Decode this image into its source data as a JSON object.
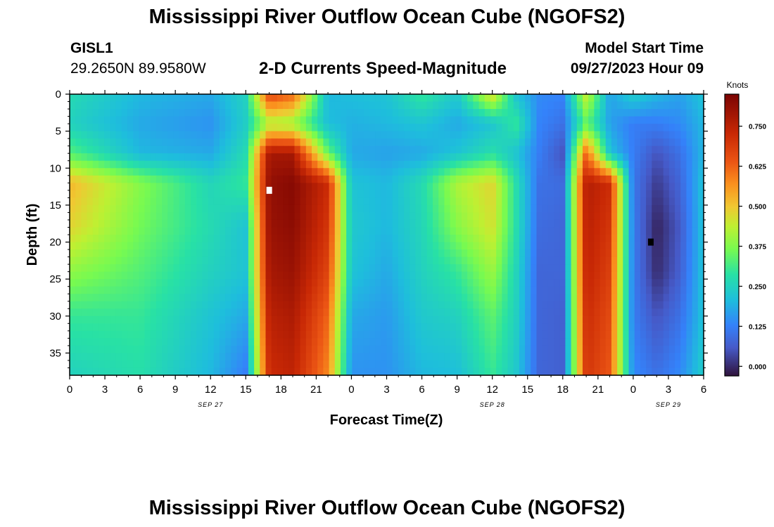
{
  "header": {
    "title": "Mississippi River Outflow Ocean Cube (NGOFS2)",
    "station_id": "GISL1",
    "station_coords": "29.2650N  89.9580W",
    "subtitle": "2-D Currents Speed-Magnitude",
    "model_start_label": "Model Start Time",
    "model_start_value": "09/27/2023 Hour 09"
  },
  "footer": {
    "repeated_title": "Mississippi River Outflow Ocean Cube (NGOFS2)"
  },
  "chart_data": {
    "type": "heatmap",
    "xlabel": "Forecast Time(Z)",
    "ylabel": "Depth (ft)",
    "x_unit": "hours from SEP 27 00Z",
    "xlim": [
      0,
      54
    ],
    "ylim": [
      0,
      38
    ],
    "y_inverted": true,
    "x_tick_values": [
      0,
      3,
      6,
      9,
      12,
      15,
      18,
      21,
      24,
      27,
      30,
      33,
      36,
      39,
      42,
      45,
      48,
      51,
      54
    ],
    "x_tick_labels": [
      "0",
      "3",
      "6",
      "9",
      "12",
      "15",
      "18",
      "21",
      "0",
      "3",
      "6",
      "9",
      "12",
      "15",
      "18",
      "21",
      "0",
      "3",
      "6"
    ],
    "date_labels": [
      {
        "text": "SEP 27",
        "x": 12
      },
      {
        "text": "SEP 28",
        "x": 36
      },
      {
        "text": "SEP 29",
        "x": 51
      }
    ],
    "y_ticks": [
      0,
      5,
      10,
      15,
      20,
      25,
      30,
      35
    ],
    "colorbar": {
      "label": "Knots",
      "min": -0.03,
      "max": 0.85,
      "ticks": [
        0.0,
        0.125,
        0.25,
        0.375,
        0.5,
        0.625,
        0.75
      ],
      "tick_labels": [
        "0.000",
        "0.125",
        "0.250",
        "0.375",
        "0.500",
        "0.625",
        "0.750"
      ]
    },
    "max_marker": {
      "x": 17,
      "y": 13,
      "color": "#ffffff"
    },
    "min_marker": {
      "x": 49.5,
      "y": 20,
      "color": "#000000"
    },
    "grid": {
      "x_hours": [
        0,
        6,
        12,
        15,
        17,
        19,
        22,
        24,
        27,
        30,
        33,
        36,
        38,
        40,
        42,
        44,
        46,
        48,
        50,
        52,
        54
      ],
      "depths": [
        0,
        4,
        8,
        12,
        18,
        24,
        30,
        38
      ],
      "speed": [
        [
          0.27,
          0.2,
          0.18,
          0.25,
          0.67,
          0.62,
          0.2,
          0.21,
          0.22,
          0.3,
          0.23,
          0.48,
          0.22,
          0.14,
          0.13,
          0.45,
          0.17,
          0.24,
          0.2,
          0.17,
          0.22
        ],
        [
          0.25,
          0.18,
          0.15,
          0.24,
          0.42,
          0.4,
          0.21,
          0.19,
          0.2,
          0.22,
          0.18,
          0.22,
          0.3,
          0.13,
          0.1,
          0.34,
          0.17,
          0.12,
          0.12,
          0.14,
          0.2
        ],
        [
          0.33,
          0.2,
          0.18,
          0.27,
          0.78,
          0.78,
          0.35,
          0.18,
          0.17,
          0.18,
          0.22,
          0.28,
          0.22,
          0.12,
          0.05,
          0.62,
          0.22,
          0.12,
          0.05,
          0.1,
          0.2
        ],
        [
          0.52,
          0.38,
          0.26,
          0.3,
          0.81,
          0.83,
          0.72,
          0.22,
          0.2,
          0.27,
          0.42,
          0.48,
          0.28,
          0.1,
          0.09,
          0.76,
          0.72,
          0.11,
          0.02,
          0.08,
          0.22
        ],
        [
          0.48,
          0.36,
          0.27,
          0.22,
          0.8,
          0.82,
          0.7,
          0.23,
          0.2,
          0.26,
          0.38,
          0.46,
          0.28,
          0.09,
          0.08,
          0.75,
          0.7,
          0.12,
          -0.01,
          0.06,
          0.22
        ],
        [
          0.39,
          0.33,
          0.25,
          0.22,
          0.78,
          0.8,
          0.67,
          0.22,
          0.18,
          0.25,
          0.3,
          0.4,
          0.26,
          0.08,
          0.08,
          0.74,
          0.68,
          0.12,
          0.0,
          0.07,
          0.22
        ],
        [
          0.3,
          0.3,
          0.22,
          0.18,
          0.75,
          0.77,
          0.62,
          0.18,
          0.16,
          0.23,
          0.25,
          0.34,
          0.25,
          0.08,
          0.07,
          0.72,
          0.66,
          0.12,
          0.05,
          0.1,
          0.22
        ],
        [
          0.25,
          0.28,
          0.2,
          0.12,
          0.72,
          0.74,
          0.58,
          0.15,
          0.15,
          0.2,
          0.21,
          0.3,
          0.23,
          0.08,
          0.07,
          0.7,
          0.64,
          0.14,
          0.1,
          0.14,
          0.24
        ]
      ]
    }
  }
}
